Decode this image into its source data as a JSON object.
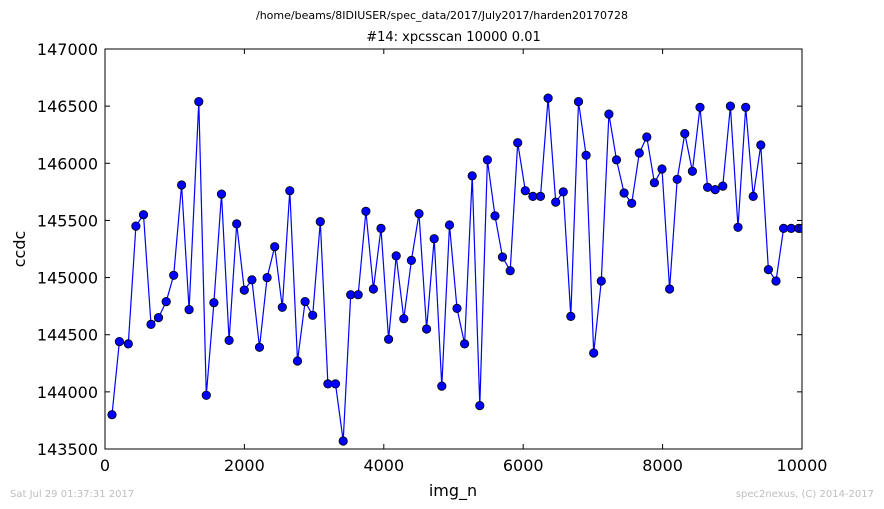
{
  "figure": {
    "suptitle": "/home/beams/8IDIUSER/spec_data/2017/July2017/harden20170728",
    "timestamp": "Sat Jul 29 01:37:31 2017",
    "credit": "spec2nexus, (C) 2014-2017"
  },
  "chart_data": {
    "type": "line",
    "title": "#14: xpcsscan 10000 0.01",
    "xlabel": "img_n",
    "ylabel": "ccdc",
    "xlim": [
      0,
      10000
    ],
    "ylim": [
      143500,
      147000
    ],
    "xticks": [
      0,
      2000,
      4000,
      6000,
      8000,
      10000
    ],
    "yticks": [
      143500,
      144000,
      144500,
      145000,
      145500,
      146000,
      146500,
      147000
    ],
    "grid": false,
    "marker": "circle",
    "color": "#0000ff",
    "x": [
      100,
      207,
      335,
      444,
      552,
      660,
      768,
      878,
      986,
      1099,
      1207,
      1346,
      1454,
      1562,
      1672,
      1781,
      1890,
      1998,
      2107,
      2216,
      2325,
      2435,
      2544,
      2652,
      2762,
      2871,
      2980,
      3089,
      3198,
      3307,
      3417,
      3525,
      3633,
      3743,
      3851,
      3960,
      4069,
      4178,
      4287,
      4396,
      4505,
      4614,
      4723,
      4832,
      4942,
      5050,
      5159,
      5268,
      5377,
      5486,
      5595,
      5703,
      5813,
      5921,
      6030,
      6139,
      6248,
      6357,
      6466,
      6575,
      6683,
      6793,
      6902,
      7011,
      7120,
      7229,
      7338,
      7447,
      7556,
      7665,
      7774,
      7883,
      7992,
      8101,
      8210,
      8319,
      8428,
      8537,
      8646,
      8755,
      8864,
      8973,
      9082,
      9192,
      9300,
      9409,
      9518,
      9627,
      9736,
      9845,
      9954,
      10000
    ],
    "y": [
      143800,
      144440,
      144420,
      145450,
      145550,
      144590,
      144650,
      144790,
      145020,
      145810,
      144720,
      146540,
      143970,
      144780,
      145730,
      144450,
      145470,
      144890,
      144980,
      144390,
      145000,
      145270,
      144740,
      145760,
      144270,
      144790,
      144670,
      145490,
      144070,
      144070,
      143570,
      144850,
      144850,
      145580,
      144900,
      145430,
      144460,
      145190,
      144640,
      145150,
      145560,
      144550,
      145340,
      144050,
      145460,
      144730,
      144420,
      145890,
      143880,
      146030,
      145540,
      145180,
      145060,
      146180,
      145760,
      145710,
      145710,
      146570,
      145660,
      145750,
      144660,
      146540,
      146070,
      144340,
      144970,
      146430,
      146030,
      145740,
      145650,
      146090,
      146230,
      145830,
      145950,
      144900,
      145860,
      146260,
      145930,
      146490,
      145790,
      145770,
      145800,
      146500,
      145440,
      146490,
      145710,
      146160,
      145070,
      144970,
      145430,
      145430,
      145430,
      145430
    ]
  }
}
